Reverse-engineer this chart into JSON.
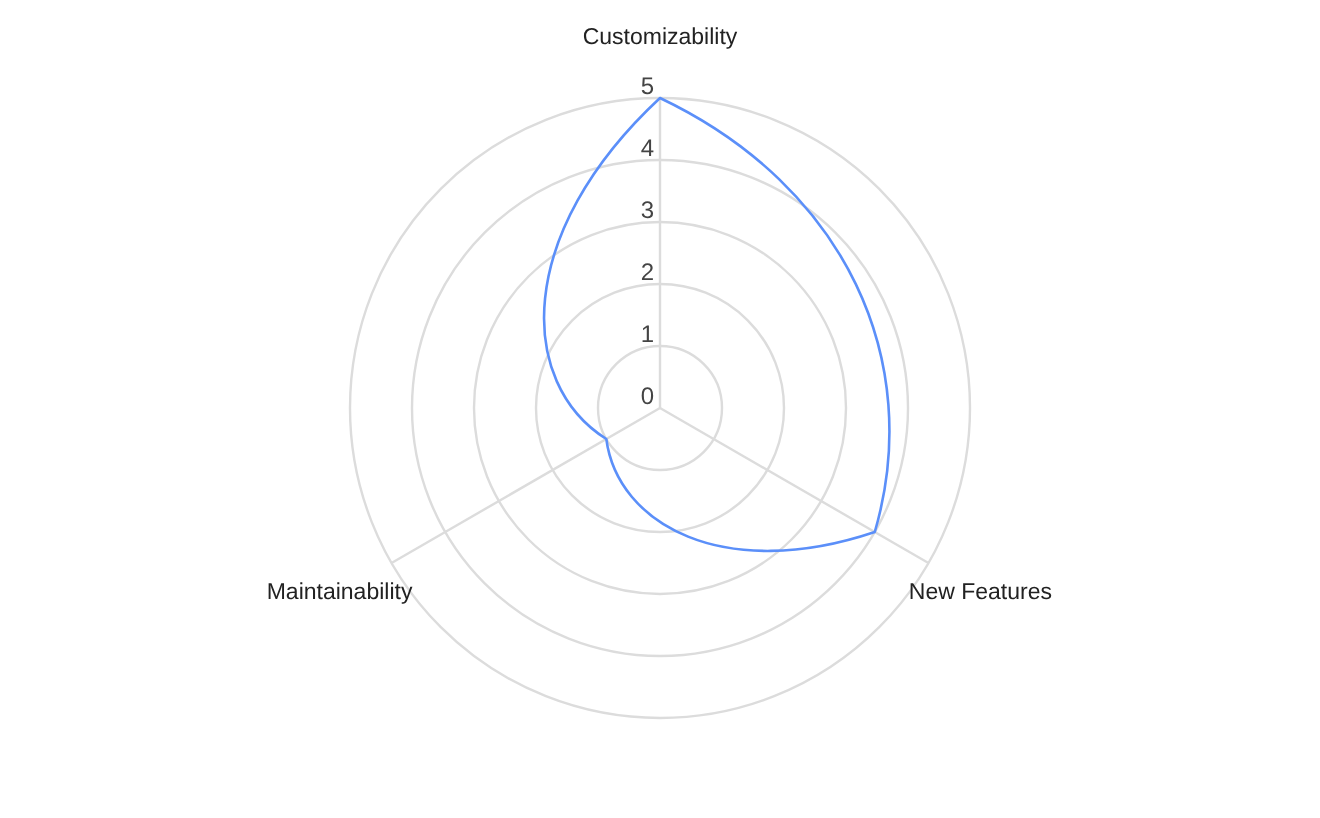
{
  "chart_data": {
    "type": "radar",
    "categories": [
      "Customizability",
      "New Features",
      "Maintainability"
    ],
    "series": [
      {
        "color": "#5b8ff9",
        "values": [
          5,
          4,
          1
        ]
      }
    ],
    "ylim": [
      0,
      5
    ],
    "yticks": [
      0,
      1,
      2,
      3,
      4,
      5
    ],
    "grid": true
  }
}
